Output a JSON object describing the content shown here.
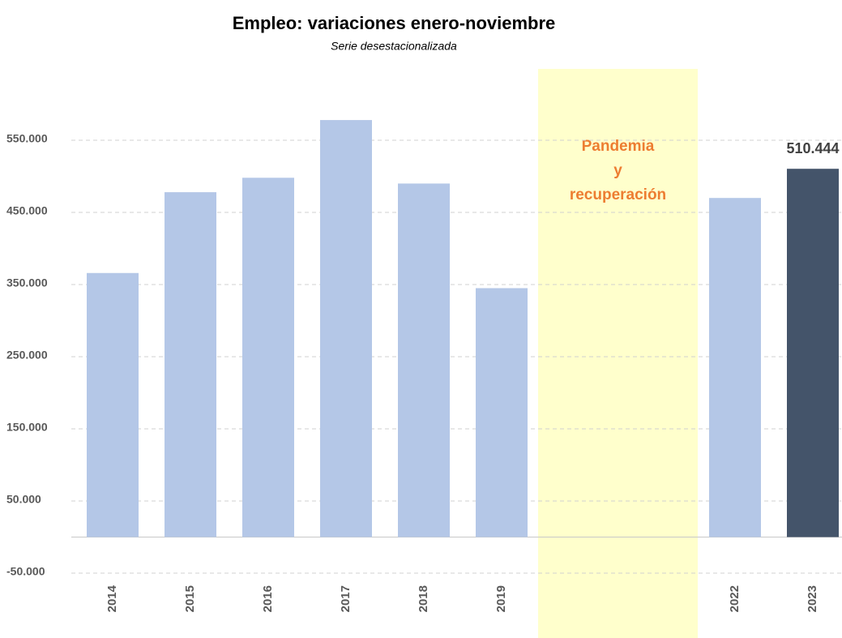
{
  "chart_data": {
    "type": "bar",
    "title": "Empleo: variaciones enero-noviembre",
    "subtitle": "Serie desestacionalizada",
    "categories": [
      "2014",
      "2015",
      "2016",
      "2017",
      "2018",
      "2019",
      null,
      null,
      "2022",
      "2023"
    ],
    "values": [
      366000,
      478000,
      498000,
      578000,
      490000,
      345000,
      null,
      null,
      470000,
      510444
    ],
    "value_labels": [
      null,
      null,
      null,
      null,
      null,
      null,
      null,
      null,
      null,
      "510.444"
    ],
    "colors": [
      "#b4c7e7",
      "#b4c7e7",
      "#b4c7e7",
      "#b4c7e7",
      "#b4c7e7",
      "#b4c7e7",
      "#b4c7e7",
      "#b4c7e7",
      "#b4c7e7",
      "#44546a"
    ],
    "ylim": [
      -50000,
      600000
    ],
    "yticks": [
      {
        "value": -50000,
        "label": "-50.000"
      },
      {
        "value": 50000,
        "label": "50.000"
      },
      {
        "value": 150000,
        "label": "150.000"
      },
      {
        "value": 250000,
        "label": "250.000"
      },
      {
        "value": 350000,
        "label": "350.000"
      },
      {
        "value": 450000,
        "label": "450.000"
      },
      {
        "value": 550000,
        "label": "550.000"
      }
    ],
    "grid": true,
    "annotation": [
      "Pandemia",
      "y",
      "recuperación"
    ]
  }
}
